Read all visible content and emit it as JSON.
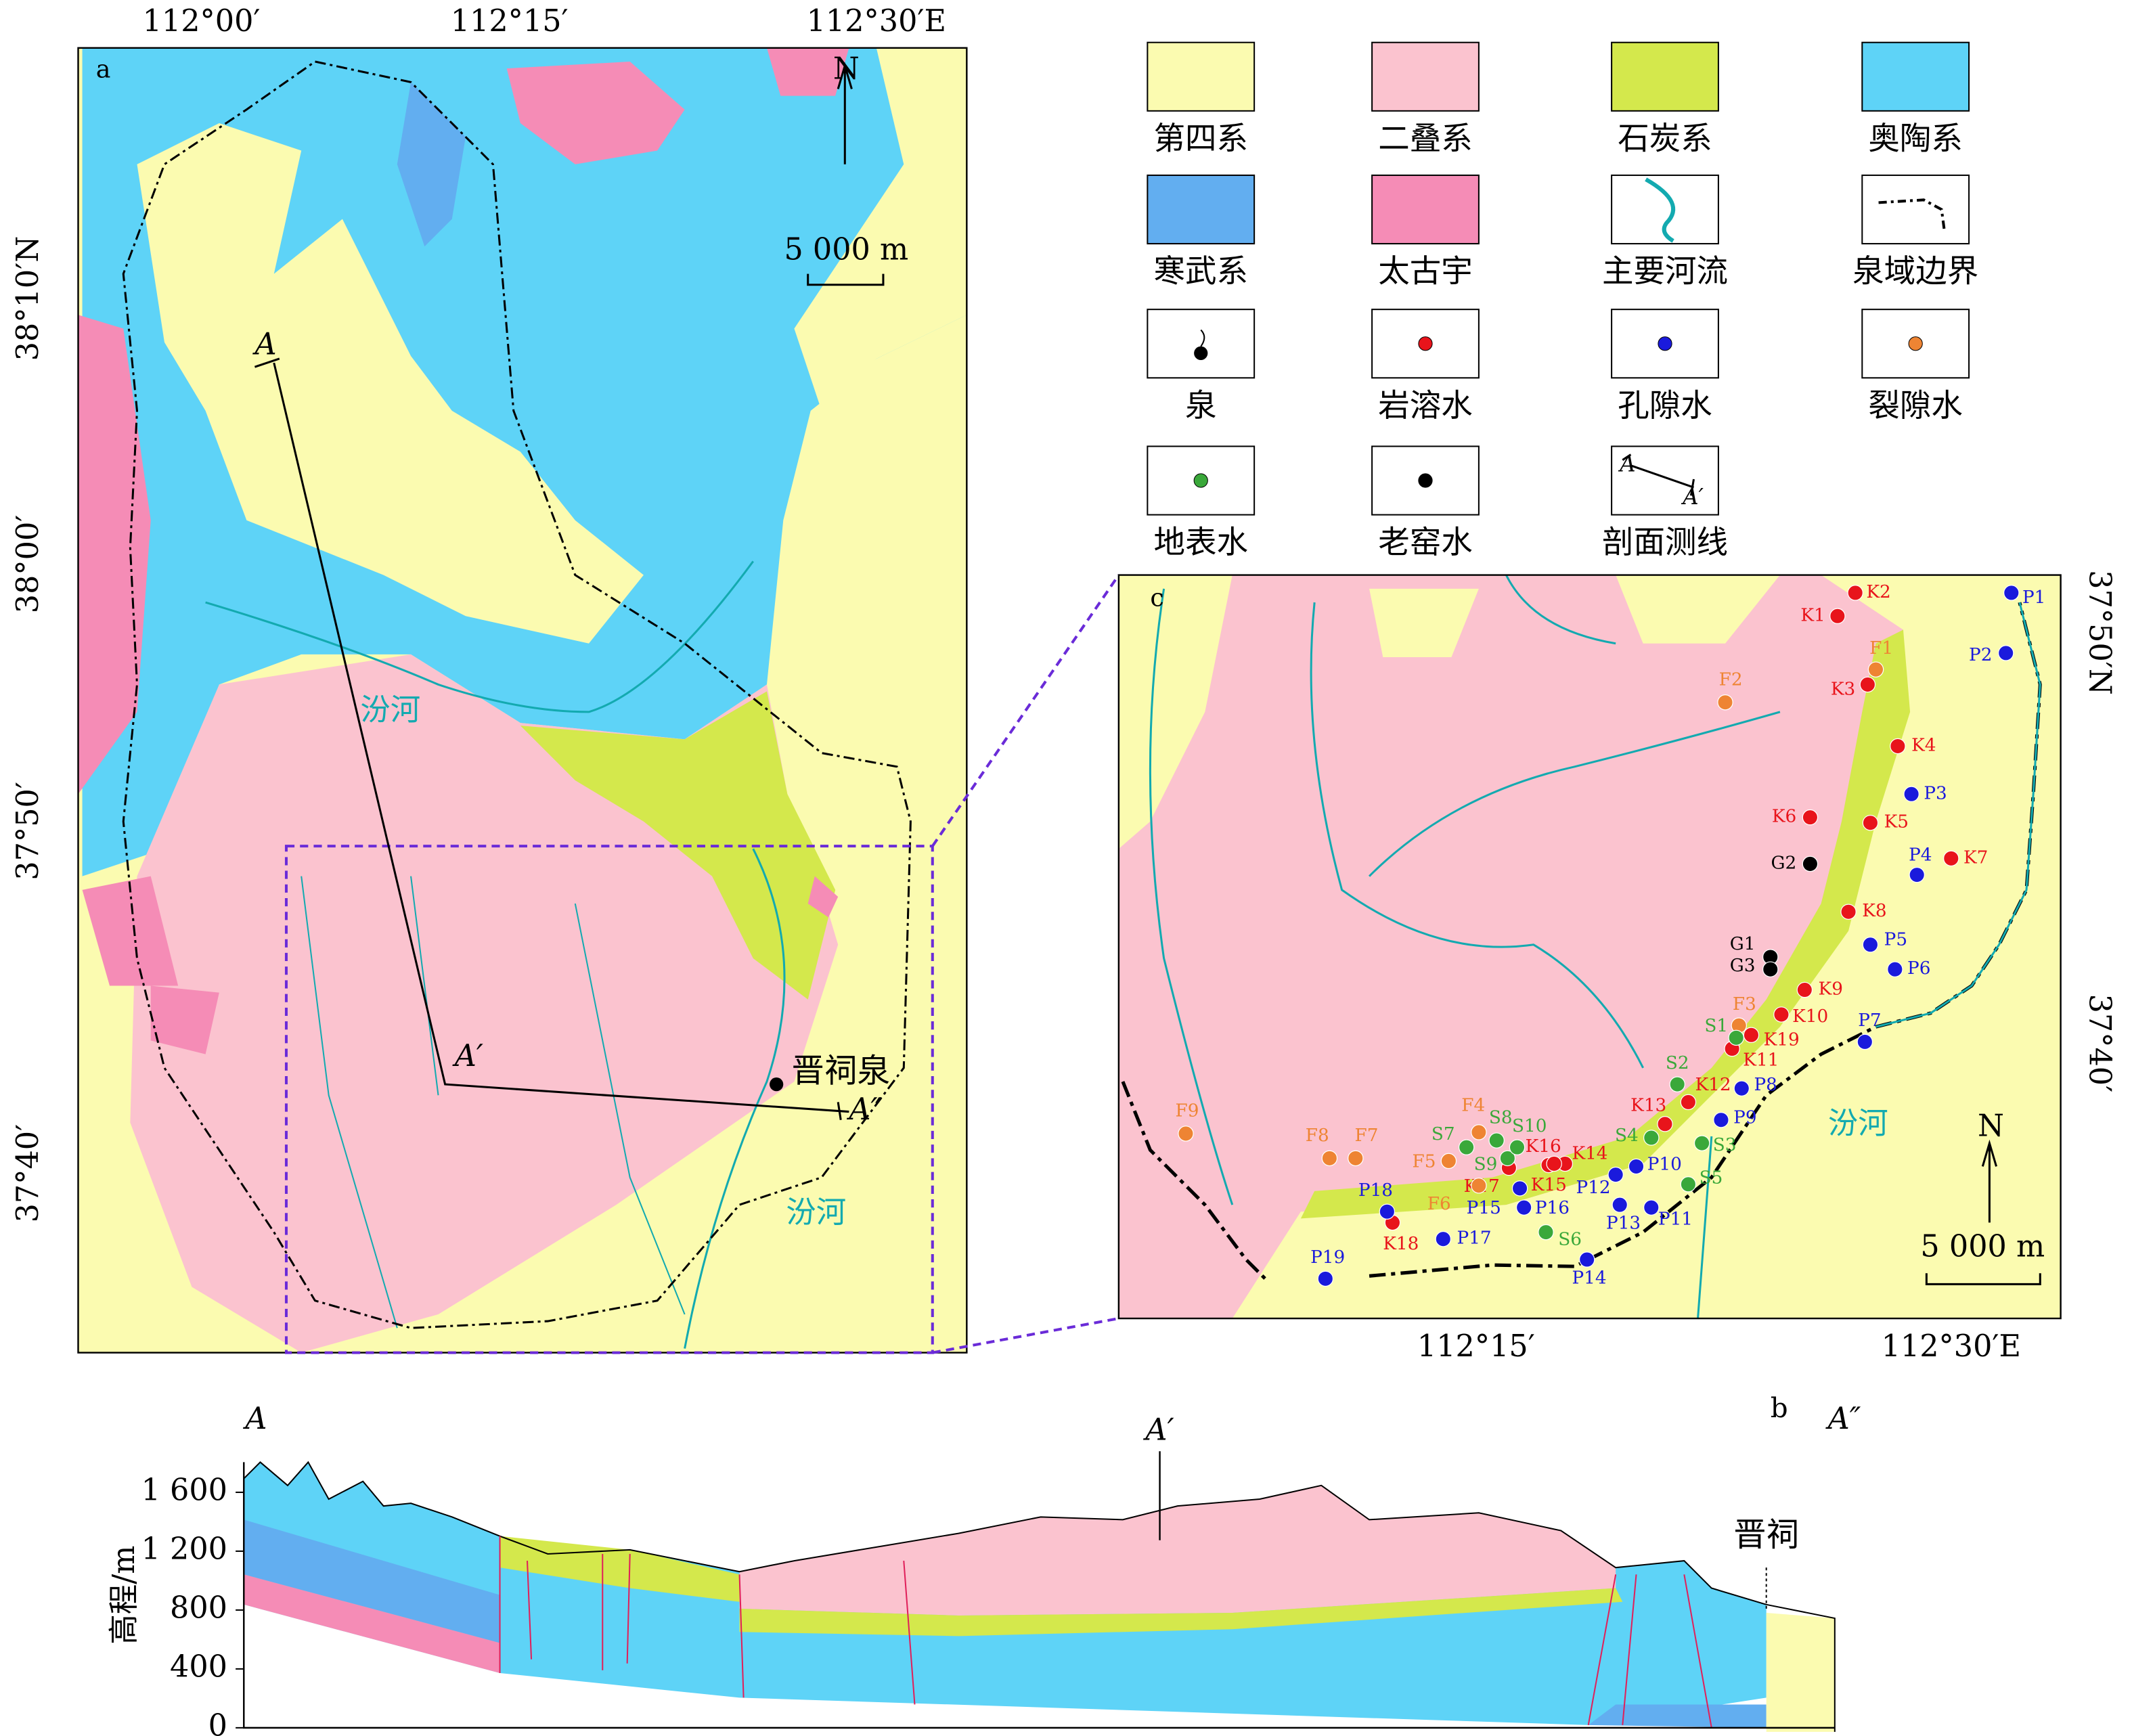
{
  "panel_a": {
    "label": "a",
    "lon_labels": [
      "112°00′",
      "112°15′",
      "112°30′E"
    ],
    "lat_labels": [
      "38°10′N",
      "38°00′",
      "37°50′",
      "37°40′"
    ],
    "north": "N",
    "scale": "5 000 m",
    "rivers": [
      "汾河",
      "汾河"
    ],
    "spring": "晋祠泉",
    "section_line": [
      "A",
      "A′",
      "A″"
    ]
  },
  "legend": [
    {
      "label": "第四系",
      "color": "#fbfbb0"
    },
    {
      "label": "二叠系",
      "color": "#fbc3cf"
    },
    {
      "label": "石炭系",
      "color": "#d4e84c"
    },
    {
      "label": "奥陶系",
      "color": "#5ed3f7"
    },
    {
      "label": "寒武系",
      "color": "#62aef0"
    },
    {
      "label": "太古宇",
      "color": "#f58cb6"
    },
    {
      "label": "主要河流",
      "color": "#13aab0"
    },
    {
      "label": "泉域边界",
      "color": "#000000"
    },
    {
      "label": "泉",
      "color": "#000000"
    },
    {
      "label": "岩溶水",
      "color": "#e8141b"
    },
    {
      "label": "孔隙水",
      "color": "#1a1adc"
    },
    {
      "label": "裂隙水",
      "color": "#ee8433"
    },
    {
      "label": "地表水",
      "color": "#3aa83a"
    },
    {
      "label": "老窑水",
      "color": "#000000"
    },
    {
      "label": "剖面测线",
      "color": "#000000"
    }
  ],
  "panel_c": {
    "label": "c",
    "lon_labels": [
      "112°15′",
      "112°30′E"
    ],
    "lat_labels": [
      "37°50′N",
      "37°40′"
    ],
    "north": "N",
    "scale": "5 000 m",
    "river": "汾河",
    "groups": [
      {
        "color": "#e8141b",
        "points": [
          "K1",
          "K2",
          "K3",
          "K4",
          "K5",
          "K6",
          "K7",
          "K8",
          "K9",
          "K10",
          "K11",
          "K12",
          "K13",
          "K14",
          "K15",
          "K16",
          "K17",
          "K18",
          "K19"
        ]
      },
      {
        "color": "#1a1adc",
        "points": [
          "P1",
          "P2",
          "P3",
          "P4",
          "P5",
          "P6",
          "P7",
          "P8",
          "P9",
          "P10",
          "P11",
          "P12",
          "P13",
          "P14",
          "P15",
          "P16",
          "P17",
          "P18",
          "P19"
        ]
      },
      {
        "color": "#ee8433",
        "points": [
          "F1",
          "F2",
          "F3",
          "F4",
          "F5",
          "F6",
          "F7",
          "F8",
          "F9"
        ]
      },
      {
        "color": "#3aa83a",
        "points": [
          "S1",
          "S2",
          "S3",
          "S4",
          "S5",
          "S6",
          "S7",
          "S8",
          "S9",
          "S10"
        ]
      },
      {
        "color": "#000000",
        "points": [
          "G1",
          "G2",
          "G3"
        ]
      }
    ]
  },
  "panel_b": {
    "label": "b",
    "ends": [
      "A",
      "A′",
      "A″"
    ],
    "site": "晋祠",
    "y_label": "高程/m",
    "ylim": [
      0,
      1600
    ],
    "yticks": [
      0,
      400,
      800,
      {
        "value": 1200,
        "label": "1 200"
      },
      {
        "value": 1600,
        "label": "1 600"
      }
    ]
  }
}
